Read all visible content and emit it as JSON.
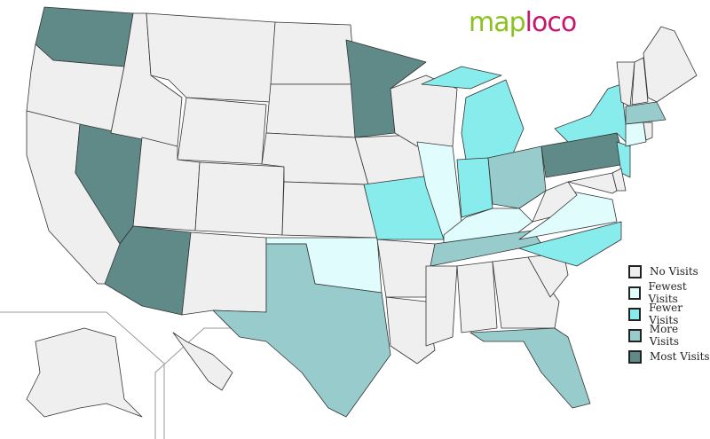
{
  "logo": {
    "part1": "map",
    "part2": "loco"
  },
  "legend": [
    {
      "label": "No Visits",
      "color": "#efefef"
    },
    {
      "label": "Fewest Visits",
      "color": "#e0fcfc"
    },
    {
      "label": "Fewer Visits",
      "color": "#88ecec"
    },
    {
      "label": "More Visits",
      "color": "#98cccc"
    },
    {
      "label": "Most Visits",
      "color": "#5f8a88"
    }
  ],
  "states": {
    "WA": "Most Visits",
    "OR": "No Visits",
    "CA": "No Visits",
    "NV": "Most Visits",
    "ID": "No Visits",
    "MT": "No Visits",
    "WY": "No Visits",
    "UT": "No Visits",
    "CO": "No Visits",
    "AZ": "Most Visits",
    "NM": "No Visits",
    "ND": "No Visits",
    "SD": "No Visits",
    "NE": "No Visits",
    "KS": "No Visits",
    "OK": "Fewest Visits",
    "TX": "More Visits",
    "MN": "Most Visits",
    "IA": "No Visits",
    "MO": "Fewer Visits",
    "AR": "No Visits",
    "LA": "No Visits",
    "WI": "No Visits",
    "IL": "Fewest Visits",
    "MI": "Fewer Visits",
    "IN": "Fewer Visits",
    "OH": "More Visits",
    "KY": "Fewest Visits",
    "TN": "More Visits",
    "MS": "No Visits",
    "AL": "No Visits",
    "GA": "No Visits",
    "FL": "More Visits",
    "SC": "No Visits",
    "NC": "Fewer Visits",
    "VA": "Fewest Visits",
    "WV": "No Visits",
    "PA": "Most Visits",
    "NY": "Fewer Visits",
    "NJ": "Fewer Visits",
    "MD": "No Visits",
    "DE": "No Visits",
    "VT": "No Visits",
    "NH": "No Visits",
    "ME": "No Visits",
    "MA": "More Visits",
    "CT": "Fewest Visits",
    "RI": "No Visits",
    "AK": "No Visits",
    "HI": "No Visits"
  }
}
